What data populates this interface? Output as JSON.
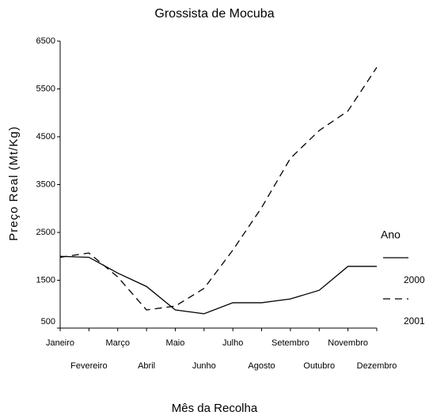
{
  "chart_data": {
    "type": "line",
    "title": "Grossista de Mocuba",
    "x_label": "Mês da Recolha",
    "y_label": "Preço Real (Mt/Kg)",
    "categories": [
      "Janeiro",
      "Fevereiro",
      "Março",
      "Abril",
      "Maio",
      "Junho",
      "Julho",
      "Agosto",
      "Setembro",
      "Outubro",
      "Novembro",
      "Dezembro"
    ],
    "legend_title": "Ano",
    "series": [
      {
        "name": "2000",
        "color": "#000000",
        "dash": "solid",
        "values": [
          2000,
          1980,
          1650,
          1370,
          880,
          800,
          1030,
          1030,
          1110,
          1290,
          1790,
          1790
        ]
      },
      {
        "name": "2001",
        "color": "#000000",
        "dash": "dashed",
        "values": [
          1980,
          2070,
          1570,
          880,
          960,
          1330,
          2130,
          3020,
          4050,
          4630,
          5040,
          5950
        ]
      }
    ],
    "ylim": [
      500,
      6500
    ],
    "yticks": [
      500,
      1500,
      2500,
      3500,
      4500,
      5500,
      6500
    ],
    "grid": false
  }
}
